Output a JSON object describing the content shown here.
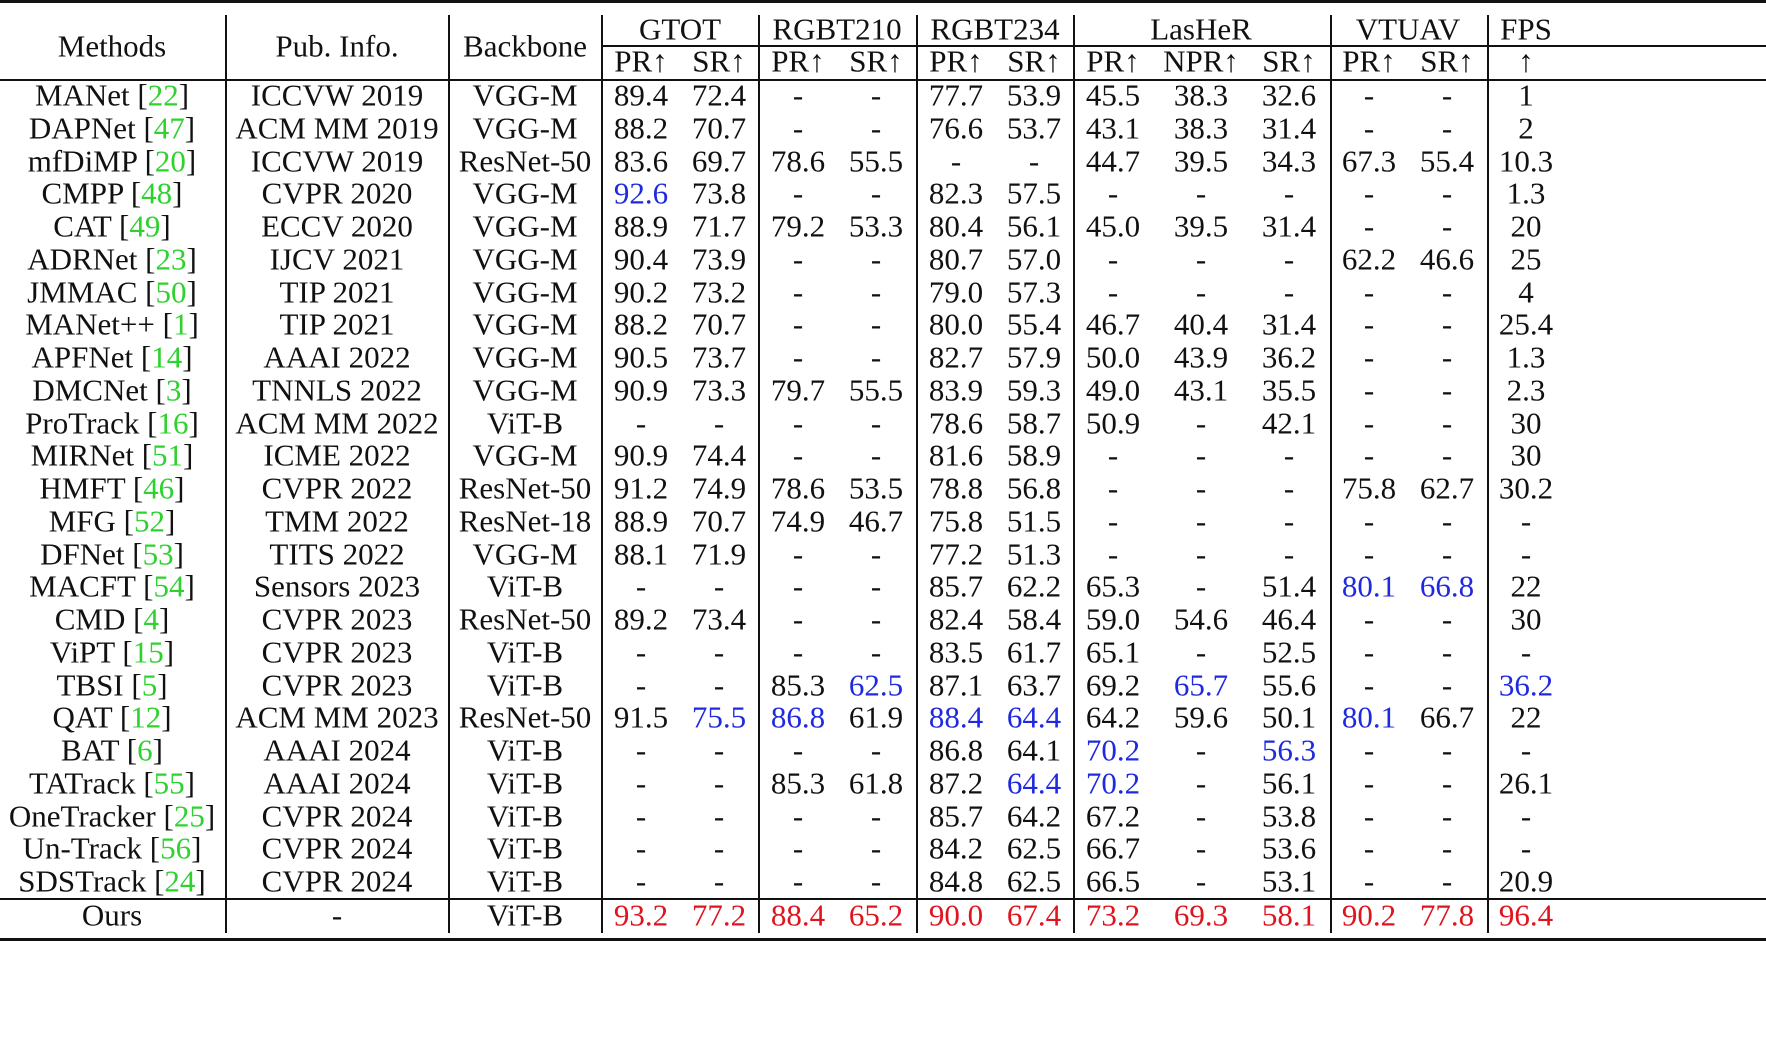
{
  "header": {
    "methods": "Methods",
    "pub_info": "Pub. Info.",
    "backbone": "Backbone",
    "groups": [
      "GTOT",
      "RGBT210",
      "RGBT234",
      "LasHeR",
      "VTUAV",
      "FPS"
    ],
    "sub": [
      "PR↑",
      "SR↑",
      "PR↑",
      "SR↑",
      "PR↑",
      "SR↑",
      "PR↑",
      "NPR↑",
      "SR↑",
      "PR↑",
      "SR↑",
      "↑"
    ]
  },
  "colors": {
    "first": "#e0141e",
    "second": "#1f2ae0",
    "ref": "#2fd12f",
    "text": "#111111"
  },
  "rows": [
    {
      "name": "MANet",
      "ref": "22",
      "pub": "ICCVW 2019",
      "backbone": "VGG-M",
      "values": [
        "89.4",
        "72.4",
        "-",
        "-",
        "77.7",
        "53.9",
        "45.5",
        "38.3",
        "32.6",
        "-",
        "-",
        "1"
      ],
      "marks": [
        0,
        0,
        0,
        0,
        0,
        0,
        0,
        0,
        0,
        0,
        0,
        0
      ]
    },
    {
      "name": "DAPNet",
      "ref": "47",
      "pub": "ACM MM 2019",
      "backbone": "VGG-M",
      "values": [
        "88.2",
        "70.7",
        "-",
        "-",
        "76.6",
        "53.7",
        "43.1",
        "38.3",
        "31.4",
        "-",
        "-",
        "2"
      ],
      "marks": [
        0,
        0,
        0,
        0,
        0,
        0,
        0,
        0,
        0,
        0,
        0,
        0
      ]
    },
    {
      "name": "mfDiMP",
      "ref": "20",
      "pub": "ICCVW 2019",
      "backbone": "ResNet-50",
      "values": [
        "83.6",
        "69.7",
        "78.6",
        "55.5",
        "-",
        "-",
        "44.7",
        "39.5",
        "34.3",
        "67.3",
        "55.4",
        "10.3"
      ],
      "marks": [
        0,
        0,
        0,
        0,
        0,
        0,
        0,
        0,
        0,
        0,
        0,
        0
      ]
    },
    {
      "name": "CMPP",
      "ref": "48",
      "pub": "CVPR 2020",
      "backbone": "VGG-M",
      "values": [
        "92.6",
        "73.8",
        "-",
        "-",
        "82.3",
        "57.5",
        "-",
        "-",
        "-",
        "-",
        "-",
        "1.3"
      ],
      "marks": [
        2,
        0,
        0,
        0,
        0,
        0,
        0,
        0,
        0,
        0,
        0,
        0
      ]
    },
    {
      "name": "CAT",
      "ref": "49",
      "pub": "ECCV 2020",
      "backbone": "VGG-M",
      "values": [
        "88.9",
        "71.7",
        "79.2",
        "53.3",
        "80.4",
        "56.1",
        "45.0",
        "39.5",
        "31.4",
        "-",
        "-",
        "20"
      ],
      "marks": [
        0,
        0,
        0,
        0,
        0,
        0,
        0,
        0,
        0,
        0,
        0,
        0
      ]
    },
    {
      "name": "ADRNet",
      "ref": "23",
      "pub": "IJCV 2021",
      "backbone": "VGG-M",
      "values": [
        "90.4",
        "73.9",
        "-",
        "-",
        "80.7",
        "57.0",
        "-",
        "-",
        "-",
        "62.2",
        "46.6",
        "25"
      ],
      "marks": [
        0,
        0,
        0,
        0,
        0,
        0,
        0,
        0,
        0,
        0,
        0,
        0
      ]
    },
    {
      "name": "JMMAC",
      "ref": "50",
      "pub": "TIP 2021",
      "backbone": "VGG-M",
      "values": [
        "90.2",
        "73.2",
        "-",
        "-",
        "79.0",
        "57.3",
        "-",
        "-",
        "-",
        "-",
        "-",
        "4"
      ],
      "marks": [
        0,
        0,
        0,
        0,
        0,
        0,
        0,
        0,
        0,
        0,
        0,
        0
      ]
    },
    {
      "name": "MANet++",
      "ref": "1",
      "pub": "TIP 2021",
      "backbone": "VGG-M",
      "values": [
        "88.2",
        "70.7",
        "-",
        "-",
        "80.0",
        "55.4",
        "46.7",
        "40.4",
        "31.4",
        "-",
        "-",
        "25.4"
      ],
      "marks": [
        0,
        0,
        0,
        0,
        0,
        0,
        0,
        0,
        0,
        0,
        0,
        0
      ]
    },
    {
      "name": "APFNet",
      "ref": "14",
      "pub": "AAAI 2022",
      "backbone": "VGG-M",
      "values": [
        "90.5",
        "73.7",
        "-",
        "-",
        "82.7",
        "57.9",
        "50.0",
        "43.9",
        "36.2",
        "-",
        "-",
        "1.3"
      ],
      "marks": [
        0,
        0,
        0,
        0,
        0,
        0,
        0,
        0,
        0,
        0,
        0,
        0
      ]
    },
    {
      "name": "DMCNet",
      "ref": "3",
      "pub": "TNNLS 2022",
      "backbone": "VGG-M",
      "values": [
        "90.9",
        "73.3",
        "79.7",
        "55.5",
        "83.9",
        "59.3",
        "49.0",
        "43.1",
        "35.5",
        "-",
        "-",
        "2.3"
      ],
      "marks": [
        0,
        0,
        0,
        0,
        0,
        0,
        0,
        0,
        0,
        0,
        0,
        0
      ]
    },
    {
      "name": "ProTrack",
      "ref": "16",
      "pub": "ACM MM 2022",
      "backbone": "ViT-B",
      "values": [
        "-",
        "-",
        "-",
        "-",
        "78.6",
        "58.7",
        "50.9",
        "-",
        "42.1",
        "-",
        "-",
        "30"
      ],
      "marks": [
        0,
        0,
        0,
        0,
        0,
        0,
        0,
        0,
        0,
        0,
        0,
        0
      ]
    },
    {
      "name": "MIRNet",
      "ref": "51",
      "pub": "ICME 2022",
      "backbone": "VGG-M",
      "values": [
        "90.9",
        "74.4",
        "-",
        "-",
        "81.6",
        "58.9",
        "-",
        "-",
        "-",
        "-",
        "-",
        "30"
      ],
      "marks": [
        0,
        0,
        0,
        0,
        0,
        0,
        0,
        0,
        0,
        0,
        0,
        0
      ]
    },
    {
      "name": "HMFT",
      "ref": "46",
      "pub": "CVPR 2022",
      "backbone": "ResNet-50",
      "values": [
        "91.2",
        "74.9",
        "78.6",
        "53.5",
        "78.8",
        "56.8",
        "-",
        "-",
        "-",
        "75.8",
        "62.7",
        "30.2"
      ],
      "marks": [
        0,
        0,
        0,
        0,
        0,
        0,
        0,
        0,
        0,
        0,
        0,
        0
      ]
    },
    {
      "name": "MFG",
      "ref": "52",
      "pub": "TMM 2022",
      "backbone": "ResNet-18",
      "values": [
        "88.9",
        "70.7",
        "74.9",
        "46.7",
        "75.8",
        "51.5",
        "-",
        "-",
        "-",
        "-",
        "-",
        "-"
      ],
      "marks": [
        0,
        0,
        0,
        0,
        0,
        0,
        0,
        0,
        0,
        0,
        0,
        0
      ]
    },
    {
      "name": "DFNet",
      "ref": "53",
      "pub": "TITS 2022",
      "backbone": "VGG-M",
      "values": [
        "88.1",
        "71.9",
        "-",
        "-",
        "77.2",
        "51.3",
        "-",
        "-",
        "-",
        "-",
        "-",
        "-"
      ],
      "marks": [
        0,
        0,
        0,
        0,
        0,
        0,
        0,
        0,
        0,
        0,
        0,
        0
      ]
    },
    {
      "name": "MACFT",
      "ref": "54",
      "pub": "Sensors 2023",
      "backbone": "ViT-B",
      "values": [
        "-",
        "-",
        "-",
        "-",
        "85.7",
        "62.2",
        "65.3",
        "-",
        "51.4",
        "80.1",
        "66.8",
        "22"
      ],
      "marks": [
        0,
        0,
        0,
        0,
        0,
        0,
        0,
        0,
        0,
        2,
        2,
        0
      ]
    },
    {
      "name": "CMD",
      "ref": "4",
      "pub": "CVPR 2023",
      "backbone": "ResNet-50",
      "values": [
        "89.2",
        "73.4",
        "-",
        "-",
        "82.4",
        "58.4",
        "59.0",
        "54.6",
        "46.4",
        "-",
        "-",
        "30"
      ],
      "marks": [
        0,
        0,
        0,
        0,
        0,
        0,
        0,
        0,
        0,
        0,
        0,
        0
      ]
    },
    {
      "name": "ViPT",
      "ref": "15",
      "pub": "CVPR 2023",
      "backbone": "ViT-B",
      "values": [
        "-",
        "-",
        "-",
        "-",
        "83.5",
        "61.7",
        "65.1",
        "-",
        "52.5",
        "-",
        "-",
        "-"
      ],
      "marks": [
        0,
        0,
        0,
        0,
        0,
        0,
        0,
        0,
        0,
        0,
        0,
        0
      ]
    },
    {
      "name": "TBSI",
      "ref": "5",
      "pub": "CVPR 2023",
      "backbone": "ViT-B",
      "values": [
        "-",
        "-",
        "85.3",
        "62.5",
        "87.1",
        "63.7",
        "69.2",
        "65.7",
        "55.6",
        "-",
        "-",
        "36.2"
      ],
      "marks": [
        0,
        0,
        0,
        2,
        0,
        0,
        0,
        2,
        0,
        0,
        0,
        2
      ]
    },
    {
      "name": "QAT",
      "ref": "12",
      "pub": "ACM MM 2023",
      "backbone": "ResNet-50",
      "values": [
        "91.5",
        "75.5",
        "86.8",
        "61.9",
        "88.4",
        "64.4",
        "64.2",
        "59.6",
        "50.1",
        "80.1",
        "66.7",
        "22"
      ],
      "marks": [
        0,
        2,
        2,
        0,
        2,
        2,
        0,
        0,
        0,
        2,
        0,
        0
      ]
    },
    {
      "name": "BAT",
      "ref": "6",
      "pub": "AAAI 2024",
      "backbone": "ViT-B",
      "values": [
        "-",
        "-",
        "-",
        "-",
        "86.8",
        "64.1",
        "70.2",
        "-",
        "56.3",
        "-",
        "-",
        "-"
      ],
      "marks": [
        0,
        0,
        0,
        0,
        0,
        0,
        2,
        0,
        2,
        0,
        0,
        0
      ]
    },
    {
      "name": "TATrack",
      "ref": "55",
      "pub": "AAAI 2024",
      "backbone": "ViT-B",
      "values": [
        "-",
        "-",
        "85.3",
        "61.8",
        "87.2",
        "64.4",
        "70.2",
        "-",
        "56.1",
        "-",
        "-",
        "26.1"
      ],
      "marks": [
        0,
        0,
        0,
        0,
        0,
        2,
        2,
        0,
        0,
        0,
        0,
        0
      ]
    },
    {
      "name": "OneTracker",
      "ref": "25",
      "pub": "CVPR 2024",
      "backbone": "ViT-B",
      "values": [
        "-",
        "-",
        "-",
        "-",
        "85.7",
        "64.2",
        "67.2",
        "-",
        "53.8",
        "-",
        "-",
        "-"
      ],
      "marks": [
        0,
        0,
        0,
        0,
        0,
        0,
        0,
        0,
        0,
        0,
        0,
        0
      ]
    },
    {
      "name": "Un-Track",
      "ref": "56",
      "pub": "CVPR 2024",
      "backbone": "ViT-B",
      "values": [
        "-",
        "-",
        "-",
        "-",
        "84.2",
        "62.5",
        "66.7",
        "-",
        "53.6",
        "-",
        "-",
        "-"
      ],
      "marks": [
        0,
        0,
        0,
        0,
        0,
        0,
        0,
        0,
        0,
        0,
        0,
        0
      ]
    },
    {
      "name": "SDSTrack",
      "ref": "24",
      "pub": "CVPR 2024",
      "backbone": "ViT-B",
      "values": [
        "-",
        "-",
        "-",
        "-",
        "84.8",
        "62.5",
        "66.5",
        "-",
        "53.1",
        "-",
        "-",
        "20.9"
      ],
      "marks": [
        0,
        0,
        0,
        0,
        0,
        0,
        0,
        0,
        0,
        0,
        0,
        0
      ]
    },
    {
      "name": "Ours",
      "ref": "",
      "pub": "-",
      "backbone": "ViT-B",
      "values": [
        "93.2",
        "77.2",
        "88.4",
        "65.2",
        "90.0",
        "67.4",
        "73.2",
        "69.3",
        "58.1",
        "90.2",
        "77.8",
        "96.4"
      ],
      "marks": [
        1,
        1,
        1,
        1,
        1,
        1,
        1,
        1,
        1,
        1,
        1,
        1
      ]
    }
  ]
}
